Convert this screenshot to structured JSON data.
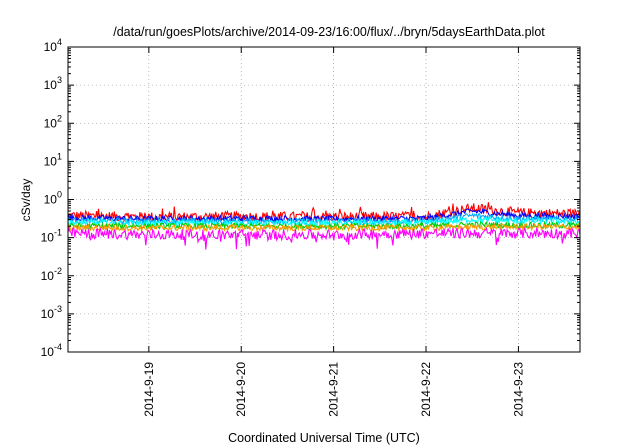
{
  "chart_data": {
    "type": "line",
    "title": "/data/run/goesPlots/archive/2014-09-23/16:00/flux/../bryn/5daysEarthData.plot",
    "xlabel": "Coordinated Universal Time (UTC)",
    "ylabel": "cSv/day",
    "yscale": "log",
    "ylim": [
      0.0001,
      10000
    ],
    "y_ticks": [
      {
        "value": 0.0001,
        "base": "10",
        "exp": "-4"
      },
      {
        "value": 0.001,
        "base": "10",
        "exp": "-3"
      },
      {
        "value": 0.01,
        "base": "10",
        "exp": "-2"
      },
      {
        "value": 0.1,
        "base": "10",
        "exp": "-1"
      },
      {
        "value": 1,
        "base": "10",
        "exp": "0"
      },
      {
        "value": 10,
        "base": "10",
        "exp": "1"
      },
      {
        "value": 100,
        "base": "10",
        "exp": "2"
      },
      {
        "value": 1000,
        "base": "10",
        "exp": "3"
      },
      {
        "value": 10000,
        "base": "10",
        "exp": "4"
      }
    ],
    "xlim": [
      "2014-09-18 03:00",
      "2014-09-23 16:00"
    ],
    "x_ticks": [
      {
        "value": "2014-09-19 00:00",
        "label": "2014-9-19"
      },
      {
        "value": "2014-09-20 00:00",
        "label": "2014-9-20"
      },
      {
        "value": "2014-09-21 00:00",
        "label": "2014-9-21"
      },
      {
        "value": "2014-09-22 00:00",
        "label": "2014-9-22"
      },
      {
        "value": "2014-09-23 00:00",
        "label": "2014-9-23"
      }
    ],
    "grid": true,
    "legend": "none",
    "series": [
      {
        "color": "#ff0000",
        "x": [
          "2014-09-18 03:00",
          "2014-09-19 00:00",
          "2014-09-20 00:00",
          "2014-09-21 00:00",
          "2014-09-22 00:00",
          "2014-09-22 12:00",
          "2014-09-23 00:00",
          "2014-09-23 16:00"
        ],
        "y": [
          0.38,
          0.35,
          0.36,
          0.35,
          0.36,
          0.6,
          0.45,
          0.42
        ]
      },
      {
        "color": "#0000ff",
        "x": [
          "2014-09-18 03:00",
          "2014-09-19 00:00",
          "2014-09-20 00:00",
          "2014-09-21 00:00",
          "2014-09-22 00:00",
          "2014-09-22 12:00",
          "2014-09-23 00:00",
          "2014-09-23 16:00"
        ],
        "y": [
          0.33,
          0.31,
          0.32,
          0.31,
          0.32,
          0.5,
          0.38,
          0.36
        ]
      },
      {
        "color": "#00aaff",
        "x": [
          "2014-09-18 03:00",
          "2014-09-19 00:00",
          "2014-09-20 00:00",
          "2014-09-21 00:00",
          "2014-09-22 00:00",
          "2014-09-22 12:00",
          "2014-09-23 00:00",
          "2014-09-23 16:00"
        ],
        "y": [
          0.28,
          0.27,
          0.27,
          0.27,
          0.27,
          0.38,
          0.31,
          0.3
        ]
      },
      {
        "color": "#00ffff",
        "x": [
          "2014-09-18 03:00",
          "2014-09-19 00:00",
          "2014-09-20 00:00",
          "2014-09-21 00:00",
          "2014-09-22 00:00",
          "2014-09-22 12:00",
          "2014-09-23 00:00",
          "2014-09-23 16:00"
        ],
        "y": [
          0.25,
          0.24,
          0.24,
          0.24,
          0.24,
          0.3,
          0.27,
          0.26
        ]
      },
      {
        "color": "#00cc00",
        "x": [
          "2014-09-18 03:00",
          "2014-09-19 00:00",
          "2014-09-20 00:00",
          "2014-09-21 00:00",
          "2014-09-22 00:00",
          "2014-09-22 12:00",
          "2014-09-23 00:00",
          "2014-09-23 16:00"
        ],
        "y": [
          0.2,
          0.2,
          0.2,
          0.2,
          0.2,
          0.22,
          0.21,
          0.21
        ]
      },
      {
        "color": "#ff9900",
        "x": [
          "2014-09-18 03:00",
          "2014-09-19 00:00",
          "2014-09-20 00:00",
          "2014-09-21 00:00",
          "2014-09-22 00:00",
          "2014-09-22 12:00",
          "2014-09-23 00:00",
          "2014-09-23 16:00"
        ],
        "y": [
          0.18,
          0.18,
          0.18,
          0.18,
          0.18,
          0.19,
          0.19,
          0.19
        ]
      },
      {
        "color": "#ff00ff",
        "x": [
          "2014-09-18 03:00",
          "2014-09-19 00:00",
          "2014-09-20 00:00",
          "2014-09-21 00:00",
          "2014-09-22 00:00",
          "2014-09-22 12:00",
          "2014-09-23 00:00",
          "2014-09-23 16:00"
        ],
        "y": [
          0.13,
          0.12,
          0.12,
          0.12,
          0.13,
          0.13,
          0.13,
          0.13
        ]
      }
    ]
  }
}
